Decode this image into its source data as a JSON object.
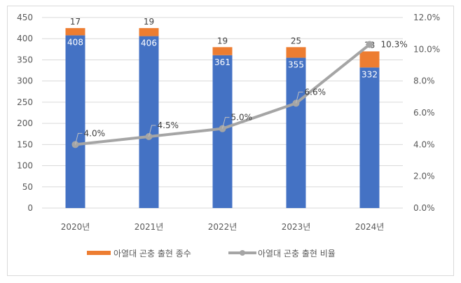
{
  "chart_data": {
    "type": "bar+line",
    "categories": [
      "2020년",
      "2021년",
      "2022년",
      "2023년",
      "2024년"
    ],
    "left_axis": {
      "ylim": [
        0,
        450
      ],
      "ticks": [
        "0",
        "50",
        "100",
        "150",
        "200",
        "250",
        "300",
        "350",
        "400",
        "450"
      ]
    },
    "right_axis": {
      "ylim": [
        0,
        12
      ],
      "ticks": [
        "0.0%",
        "2.0%",
        "4.0%",
        "6.0%",
        "8.0%",
        "10.0%",
        "12.0%"
      ]
    },
    "grid": true,
    "legend_position": "bottom",
    "series": [
      {
        "type": "stacked-bar",
        "color": "#4472c4",
        "values": [
          408,
          406,
          361,
          355,
          332
        ],
        "labels": [
          "408",
          "406",
          "361",
          "355",
          "332"
        ]
      },
      {
        "type": "stacked-bar",
        "name": "아열대 곤충 출현 종수",
        "color": "#ed7d31",
        "values": [
          17,
          19,
          19,
          25,
          38
        ],
        "labels": [
          "17",
          "19",
          "19",
          "25",
          "38"
        ]
      },
      {
        "type": "line",
        "axis": "right",
        "name": "아열대 곤충 출현 비율",
        "color": "#a5a5a5",
        "values": [
          4.0,
          4.5,
          5.0,
          6.6,
          10.3
        ],
        "labels": [
          "4.0%",
          "4.5%",
          "5.0%",
          "6.6%",
          "10.3%"
        ]
      }
    ]
  }
}
